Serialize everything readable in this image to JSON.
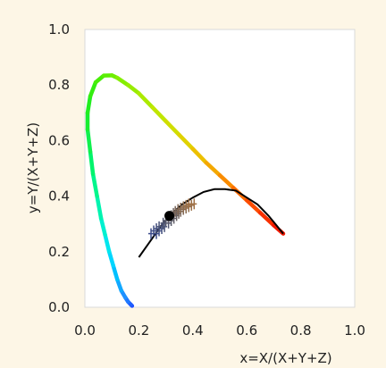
{
  "chart_data": {
    "type": "scatter",
    "title": "",
    "xlabel": "x=X/(X+Y+Z)",
    "ylabel": "y=Y/(X+Y+Z)",
    "xlim": [
      0.0,
      1.0
    ],
    "ylim": [
      0.0,
      1.0
    ],
    "x_ticks": [
      "0.0",
      "0.2",
      "0.4",
      "0.6",
      "0.8",
      "1.0"
    ],
    "y_ticks": [
      "0.0",
      "0.2",
      "0.4",
      "0.6",
      "0.8",
      "1.0"
    ],
    "grid": false,
    "legend": "none",
    "series": [
      {
        "kind": "spectral-locus",
        "points": [
          [
            0.175,
            0.005
          ],
          [
            0.17,
            0.01
          ],
          [
            0.16,
            0.02
          ],
          [
            0.15,
            0.035
          ],
          [
            0.135,
            0.06
          ],
          [
            0.12,
            0.1
          ],
          [
            0.105,
            0.15
          ],
          [
            0.09,
            0.2
          ],
          [
            0.075,
            0.26
          ],
          [
            0.06,
            0.32
          ],
          [
            0.045,
            0.4
          ],
          [
            0.03,
            0.48
          ],
          [
            0.02,
            0.56
          ],
          [
            0.01,
            0.64
          ],
          [
            0.01,
            0.7
          ],
          [
            0.02,
            0.76
          ],
          [
            0.04,
            0.81
          ],
          [
            0.07,
            0.834
          ],
          [
            0.1,
            0.835
          ],
          [
            0.12,
            0.826
          ],
          [
            0.16,
            0.8
          ],
          [
            0.2,
            0.77
          ],
          [
            0.25,
            0.72
          ],
          [
            0.3,
            0.67
          ],
          [
            0.35,
            0.62
          ],
          [
            0.4,
            0.57
          ],
          [
            0.45,
            0.52
          ],
          [
            0.5,
            0.475
          ],
          [
            0.55,
            0.43
          ],
          [
            0.6,
            0.385
          ],
          [
            0.65,
            0.34
          ],
          [
            0.7,
            0.295
          ],
          [
            0.735,
            0.265
          ]
        ],
        "colors": [
          "#1e50ff",
          "#1e60ff",
          "#1e78ff",
          "#1e90ff",
          "#12a8ff",
          "#00c0ff",
          "#00d6ff",
          "#00e6ee",
          "#00f0d0",
          "#00f4b0",
          "#00f68c",
          "#00f46c",
          "#10f04e",
          "#18ee30",
          "#22ee20",
          "#34ee10",
          "#48ee08",
          "#5cee04",
          "#70ee00",
          "#84ee00",
          "#98ec00",
          "#acea00",
          "#c0e600",
          "#d0de00",
          "#e0d200",
          "#ecc000",
          "#f4a800",
          "#fa8c00",
          "#fc6c00",
          "#fc4c00",
          "#f83000",
          "#f01800",
          "#e80000"
        ]
      },
      {
        "kind": "planckian-locus",
        "color": "#000000",
        "points": [
          [
            0.2,
            0.18
          ],
          [
            0.24,
            0.235
          ],
          [
            0.28,
            0.29
          ],
          [
            0.32,
            0.335
          ],
          [
            0.36,
            0.37
          ],
          [
            0.4,
            0.395
          ],
          [
            0.44,
            0.415
          ],
          [
            0.48,
            0.425
          ],
          [
            0.52,
            0.425
          ],
          [
            0.56,
            0.42
          ],
          [
            0.6,
            0.395
          ],
          [
            0.64,
            0.37
          ],
          [
            0.68,
            0.33
          ],
          [
            0.71,
            0.295
          ],
          [
            0.735,
            0.265
          ]
        ]
      },
      {
        "kind": "sample-markers",
        "marker": "cross",
        "points": [
          [
            0.255,
            0.265
          ],
          [
            0.265,
            0.275
          ],
          [
            0.275,
            0.283
          ],
          [
            0.285,
            0.29
          ],
          [
            0.3,
            0.303
          ],
          [
            0.31,
            0.312
          ],
          [
            0.32,
            0.32
          ],
          [
            0.33,
            0.33
          ],
          [
            0.338,
            0.338
          ],
          [
            0.345,
            0.345
          ],
          [
            0.355,
            0.352
          ],
          [
            0.365,
            0.357
          ],
          [
            0.375,
            0.362
          ],
          [
            0.385,
            0.367
          ],
          [
            0.395,
            0.372
          ]
        ],
        "colors": [
          "#3a4a8a",
          "#3e4c84",
          "#44507e",
          "#4a5478",
          "#505670",
          "#585a6a",
          "#605c66",
          "#686062",
          "#70625e",
          "#786458",
          "#806652",
          "#886a50",
          "#906c4c",
          "#986e48",
          "#a07044"
        ]
      },
      {
        "kind": "white-point",
        "marker": "dot",
        "color": "#000000",
        "points": [
          [
            0.313,
            0.329
          ]
        ]
      }
    ]
  }
}
